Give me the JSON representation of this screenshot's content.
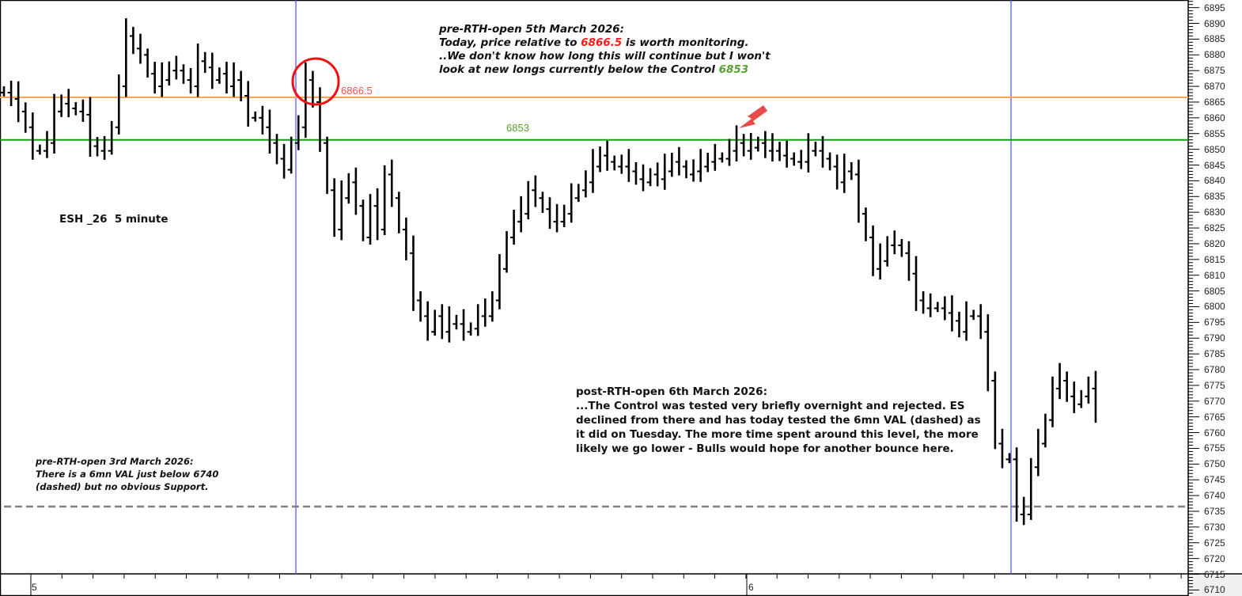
{
  "chart_data": {
    "type": "bar",
    "title": "ESH _26  5 minute",
    "symbol": "ESH _26",
    "interval": "5 minute",
    "ylim": [
      6708,
      6897
    ],
    "y_ticks": [
      6895,
      6890,
      6885,
      6880,
      6875,
      6870,
      6865,
      6860,
      6855,
      6850,
      6845,
      6840,
      6835,
      6830,
      6825,
      6820,
      6815,
      6810,
      6805,
      6800,
      6795,
      6790,
      6785,
      6780,
      6775,
      6770,
      6765,
      6760,
      6755,
      6750,
      6745,
      6740,
      6735,
      6730,
      6725,
      6720,
      6715,
      6710
    ],
    "x_tick_labels": [
      "5",
      "6"
    ],
    "grid": false,
    "series_color": "#000000",
    "values": [
      6868,
      6866,
      6862,
      6857,
      6849.5,
      6849.5,
      6852,
      6862,
      6864.5,
      6863,
      6862,
      6861,
      6851,
      6849.5,
      6849.5,
      6857,
      6870,
      6886,
      6882,
      6880,
      6874,
      6870,
      6872,
      6875,
      6875,
      6872,
      6870,
      6878,
      6876,
      6872,
      6874,
      6870,
      6872,
      6867,
      6860,
      6860,
      6857,
      6852,
      6847,
      6843.5,
      6852,
      6857,
      6872,
      6865,
      6852,
      6837,
      6824.5,
      6834.5,
      6839.5,
      6832,
      6822,
      6832,
      6824.5,
      6842,
      6834.5,
      6824.5,
      6817,
      6802,
      6797,
      6792,
      6797,
      6792,
      6794.5,
      6794.5,
      6792,
      6793,
      6797,
      6797,
      6802,
      6812,
      6822,
      6827,
      6829.5,
      6837,
      6834.5,
      6831,
      6827,
      6827,
      6829.5,
      6834.5,
      6837,
      6839.5,
      6844.5,
      6848,
      6846,
      6844.5,
      6844.5,
      6843,
      6840.5,
      6839.5,
      6842,
      6840.5,
      6843,
      6846,
      6844.5,
      6842,
      6843,
      6844.5,
      6846,
      6847,
      6847,
      6849.5,
      6852,
      6849.5,
      6850.5,
      6852,
      6849.5,
      6849.5,
      6848,
      6847,
      6846,
      6846,
      6849.5,
      6849.5,
      6847,
      6844.5,
      6839.5,
      6843,
      6842,
      6829.5,
      6822,
      6812,
      6814.5,
      6819.5,
      6819.5,
      6817,
      6810.5,
      6802,
      6799.5,
      6799.5,
      6799.5,
      6798,
      6795.5,
      6792,
      6797,
      6797,
      6792,
      6776.5,
      6756.5,
      6751.5,
      6751.5,
      6734,
      6734,
      6749,
      6756.5,
      6764,
      6774,
      6776.5,
      6771.5,
      6769,
      6771.5,
      6774,
      6766.5
    ],
    "levels": [
      {
        "label": "6866.5",
        "value": 6866.5,
        "color": "#ffa64d",
        "label_color": "#ff4d4d",
        "style": "solid"
      },
      {
        "label": "6853",
        "value": 6853,
        "color": "#1a9a1a",
        "label_color": "#5aa02c",
        "style": "solid"
      },
      {
        "value": 6736.5,
        "color": "#808080",
        "style": "dashed"
      }
    ],
    "session_line_color": "#4a4aff"
  },
  "annotations": {
    "top": {
      "line1": "pre-RTH-open 5th March 2026:",
      "line2_a": "Today, price relative to ",
      "line2_b": "6866.5",
      "line2_c": " is worth monitoring.",
      "line3": "..We don't know how long this will continue but I won't",
      "line4_a": "look at new longs currently below the Control ",
      "line4_b": "6853"
    },
    "post": {
      "line1": "post-RTH-open 6th March 2026:",
      "line2": "...The Control was tested very briefly overnight and rejected. ES",
      "line3": "declined from there and has today tested the 6mn VAL (dashed) as",
      "line4": "it did on Tuesday. The more time spent around this level, the more",
      "line5": "likely we go lower - Bulls would hope for another bounce here."
    },
    "pre3": {
      "line1": "pre-RTH-open 3rd March 2026:",
      "line2": "There is a 6mn VAL just below 6740",
      "line3": "(dashed) but no obvious Support."
    },
    "circle_color": "#ee1111",
    "arrow_color": "#e84a4a"
  }
}
